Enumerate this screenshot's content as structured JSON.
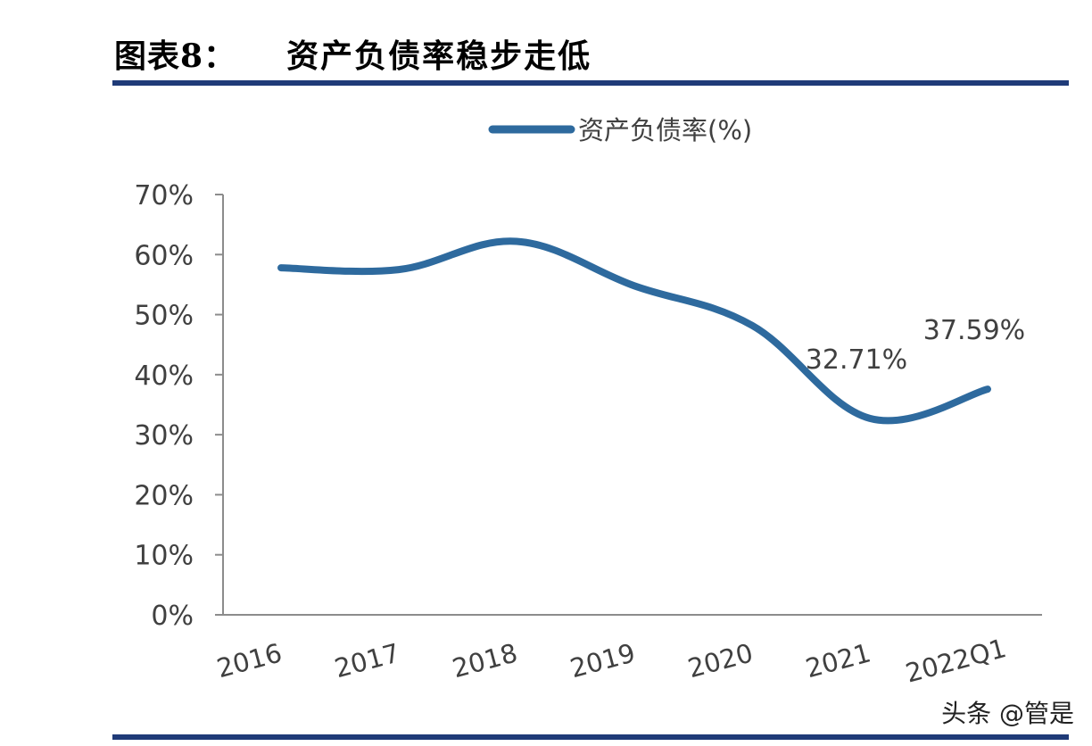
{
  "header": {
    "figure_label": "图表8：",
    "title": "资产负债率稳步走低"
  },
  "watermark": "头条 @管是",
  "colors": {
    "line": "#2e6a9e",
    "axis": "#8c8c8c",
    "text": "#404040",
    "rule": "#1f3b78"
  },
  "chart_data": {
    "type": "line",
    "title": "",
    "xlabel": "",
    "ylabel": "",
    "categories": [
      "2016",
      "2017",
      "2018",
      "2019",
      "2020",
      "2021",
      "2022Q1"
    ],
    "series": [
      {
        "name": "资产负债率(%)",
        "values": [
          57.8,
          57.5,
          62.2,
          54.8,
          48.2,
          32.71,
          37.59
        ]
      }
    ],
    "ylim": [
      0,
      70
    ],
    "yticks": [
      "0%",
      "10%",
      "20%",
      "30%",
      "40%",
      "50%",
      "60%",
      "70%"
    ],
    "data_labels": [
      {
        "index": 5,
        "text": "32.71%"
      },
      {
        "index": 6,
        "text": "37.59%"
      }
    ],
    "legend_position": "top-center",
    "grid": false
  }
}
